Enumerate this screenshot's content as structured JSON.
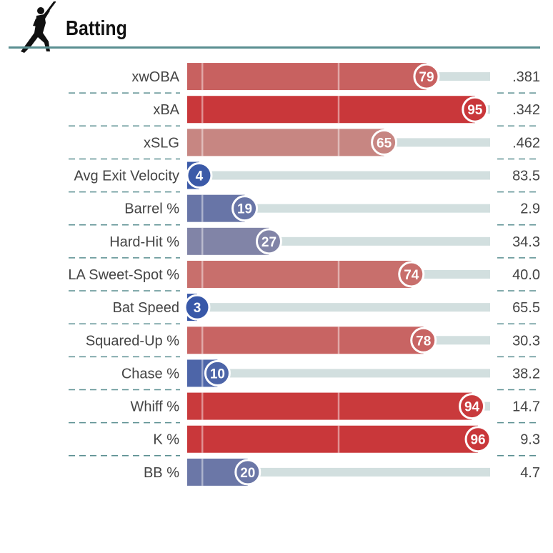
{
  "title": "Batting",
  "chart_data": {
    "type": "bar",
    "orientation": "horizontal",
    "categories": [
      "xwOBA",
      "xBA",
      "xSLG",
      "Avg Exit Velocity",
      "Barrel %",
      "Hard-Hit %",
      "LA Sweet-Spot %",
      "Bat Speed",
      "Squared-Up %",
      "Chase %",
      "Whiff %",
      "K %",
      "BB %"
    ],
    "values": [
      79,
      95,
      65,
      4,
      19,
      27,
      74,
      3,
      78,
      10,
      94,
      96,
      20
    ],
    "value_labels": [
      "79",
      "95",
      "65",
      "4",
      "19",
      "27",
      "74",
      "3",
      "78",
      "10",
      "94",
      "96",
      "20"
    ],
    "stat_labels": [
      ".381",
      ".342",
      ".462",
      "83.5",
      "2.9",
      "34.3",
      "40.0",
      "65.5",
      "30.3",
      "38.2",
      "14.7",
      "9.3",
      "4.7"
    ],
    "xlim": [
      0,
      100
    ],
    "reference_lines": [
      5,
      50
    ],
    "legend": "none",
    "grid": false,
    "colors": {
      "high": "#c9373a",
      "mid": "#c6aea6",
      "low": "#3858a8",
      "track": "#d2dfdf",
      "divider": "#5a8f91",
      "title_rule": "#5a8f91"
    }
  }
}
